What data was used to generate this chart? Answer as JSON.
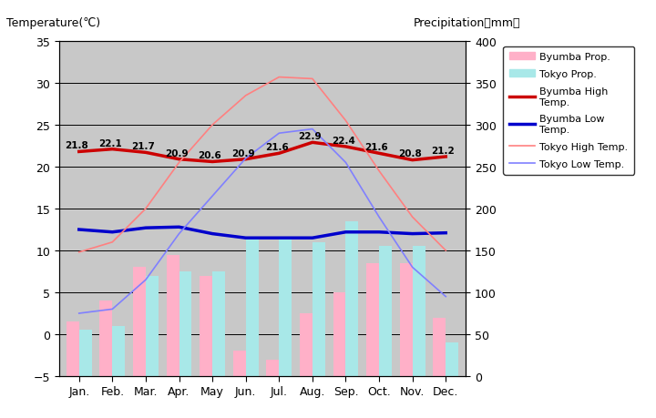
{
  "months": [
    "Jan.",
    "Feb.",
    "Mar.",
    "Apr.",
    "May",
    "Jun.",
    "Jul.",
    "Aug.",
    "Sep.",
    "Oct.",
    "Nov.",
    "Dec."
  ],
  "byumba_high": [
    21.8,
    22.1,
    21.7,
    20.9,
    20.6,
    20.9,
    21.6,
    22.9,
    22.4,
    21.6,
    20.8,
    21.2
  ],
  "byumba_low": [
    12.5,
    12.2,
    12.7,
    12.8,
    12.0,
    11.5,
    11.5,
    11.5,
    12.2,
    12.2,
    12.0,
    12.1
  ],
  "tokyo_high": [
    9.8,
    11.0,
    15.0,
    20.5,
    25.0,
    28.5,
    30.7,
    30.5,
    25.5,
    19.5,
    14.0,
    10.0
  ],
  "tokyo_low": [
    2.5,
    3.0,
    6.5,
    12.0,
    16.5,
    21.0,
    24.0,
    24.5,
    20.5,
    14.0,
    8.0,
    4.5
  ],
  "byumba_precip_mm": [
    65,
    90,
    130,
    145,
    120,
    30,
    20,
    75,
    100,
    135,
    135,
    70
  ],
  "tokyo_precip_mm": [
    55,
    60,
    120,
    125,
    125,
    165,
    165,
    160,
    185,
    155,
    155,
    40
  ],
  "ylim_left": [
    -5,
    35
  ],
  "ylim_right": [
    0,
    400
  ],
  "left_ticks": [
    -5,
    0,
    5,
    10,
    15,
    20,
    25,
    30,
    35
  ],
  "right_ticks": [
    0,
    50,
    100,
    150,
    200,
    250,
    300,
    350,
    400
  ],
  "bg_color": "#c0c0c0",
  "plot_bg": "#c8c8c8",
  "byumba_bar_color": "#ffb0c8",
  "tokyo_bar_color": "#a8e8e8",
  "byumba_high_color": "#cc0000",
  "byumba_low_color": "#0000cc",
  "tokyo_high_color": "#ff8080",
  "tokyo_low_color": "#8080ff",
  "title_left": "Temperature(℃)",
  "title_right": "Precipitation（mm）",
  "legend_labels": [
    "Byumba Prop.",
    "Tokyo Prop.",
    "Byumba High\nTemp.",
    "Byumba Low\nTemp.",
    "Tokyo High Temp.",
    "Tokyo Low Temp."
  ]
}
